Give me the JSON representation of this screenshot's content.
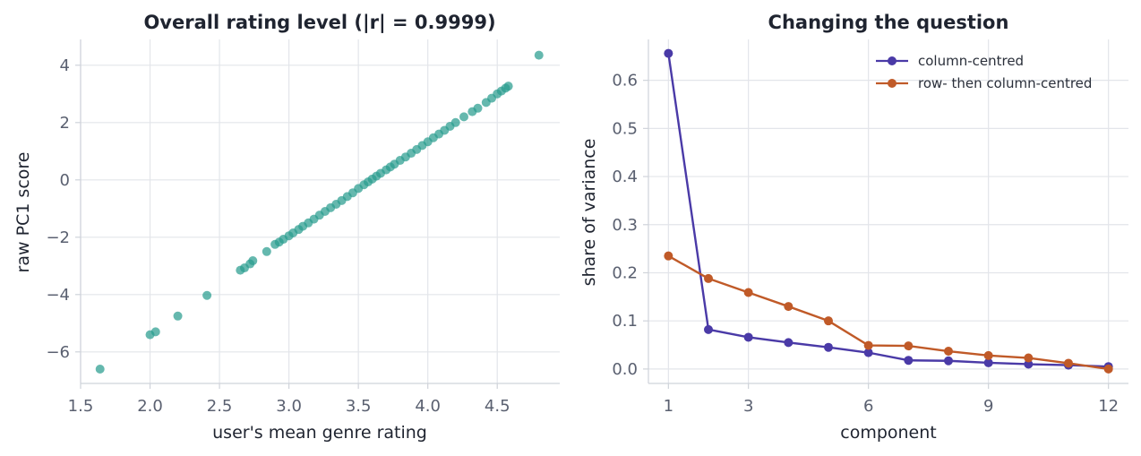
{
  "chart_data": [
    {
      "type": "scatter",
      "title": "Overall rating level (|r| = 0.9999)",
      "xlabel": "user's mean genre rating",
      "ylabel": "raw PC1 score",
      "xlim": [
        1.5,
        4.95
      ],
      "ylim": [
        -7.1,
        4.9
      ],
      "xticks": [
        1.5,
        2.0,
        2.5,
        3.0,
        3.5,
        4.0,
        4.5
      ],
      "xtick_labels": [
        "1.5",
        "2.0",
        "2.5",
        "3.0",
        "3.5",
        "4.0",
        "4.5"
      ],
      "yticks": [
        4,
        2,
        0,
        -2,
        -4,
        -6
      ],
      "ytick_labels": [
        "4",
        "2",
        "0",
        "−2",
        "−4",
        "−6"
      ],
      "grid": true,
      "color": "#2a9d8f",
      "points": [
        [
          1.64,
          -6.6
        ],
        [
          2.0,
          -5.4
        ],
        [
          2.04,
          -5.3
        ],
        [
          2.2,
          -4.75
        ],
        [
          2.41,
          -4.03
        ],
        [
          2.65,
          -3.15
        ],
        [
          2.68,
          -3.07
        ],
        [
          2.72,
          -2.93
        ],
        [
          2.74,
          -2.82
        ],
        [
          2.84,
          -2.5
        ],
        [
          2.9,
          -2.25
        ],
        [
          2.93,
          -2.17
        ],
        [
          2.96,
          -2.07
        ],
        [
          3.0,
          -1.95
        ],
        [
          3.03,
          -1.85
        ],
        [
          3.07,
          -1.73
        ],
        [
          3.1,
          -1.62
        ],
        [
          3.14,
          -1.5
        ],
        [
          3.18,
          -1.37
        ],
        [
          3.22,
          -1.23
        ],
        [
          3.26,
          -1.1
        ],
        [
          3.3,
          -0.97
        ],
        [
          3.34,
          -0.85
        ],
        [
          3.38,
          -0.72
        ],
        [
          3.42,
          -0.58
        ],
        [
          3.46,
          -0.45
        ],
        [
          3.5,
          -0.3
        ],
        [
          3.54,
          -0.17
        ],
        [
          3.57,
          -0.07
        ],
        [
          3.6,
          0.03
        ],
        [
          3.63,
          0.13
        ],
        [
          3.66,
          0.23
        ],
        [
          3.7,
          0.35
        ],
        [
          3.73,
          0.45
        ],
        [
          3.76,
          0.55
        ],
        [
          3.8,
          0.68
        ],
        [
          3.84,
          0.8
        ],
        [
          3.88,
          0.93
        ],
        [
          3.92,
          1.06
        ],
        [
          3.96,
          1.2
        ],
        [
          4.0,
          1.33
        ],
        [
          4.04,
          1.47
        ],
        [
          4.08,
          1.6
        ],
        [
          4.12,
          1.73
        ],
        [
          4.16,
          1.87
        ],
        [
          4.2,
          2.0
        ],
        [
          4.26,
          2.2
        ],
        [
          4.32,
          2.38
        ],
        [
          4.36,
          2.5
        ],
        [
          4.42,
          2.7
        ],
        [
          4.46,
          2.85
        ],
        [
          4.5,
          3.0
        ],
        [
          4.53,
          3.1
        ],
        [
          4.56,
          3.2
        ],
        [
          4.58,
          3.27
        ],
        [
          4.8,
          4.35
        ]
      ]
    },
    {
      "type": "line",
      "title": "Changing the question",
      "xlabel": "component",
      "ylabel": "share of variance",
      "xlim": [
        0.5,
        12.5
      ],
      "ylim": [
        -0.03,
        0.685
      ],
      "xticks": [
        1,
        3,
        6,
        9,
        12
      ],
      "xtick_labels": [
        "1",
        "3",
        "6",
        "9",
        "12"
      ],
      "yticks": [
        0.0,
        0.1,
        0.2,
        0.3,
        0.4,
        0.5,
        0.6
      ],
      "ytick_labels": [
        "0.0",
        "0.1",
        "0.2",
        "0.3",
        "0.4",
        "0.5",
        "0.6"
      ],
      "grid": true,
      "legend_position": "top-right",
      "x": [
        1,
        2,
        3,
        4,
        5,
        6,
        7,
        8,
        9,
        10,
        11,
        12
      ],
      "series": [
        {
          "name": "column-centred",
          "color": "#4a3aa7",
          "values": [
            0.656,
            0.082,
            0.066,
            0.055,
            0.045,
            0.034,
            0.018,
            0.017,
            0.013,
            0.01,
            0.008,
            0.005
          ]
        },
        {
          "name": "row- then column-centred",
          "color": "#c05a28",
          "values": [
            0.235,
            0.188,
            0.159,
            0.13,
            0.1,
            0.049,
            0.048,
            0.037,
            0.028,
            0.023,
            0.012,
            0.0
          ]
        }
      ]
    }
  ]
}
